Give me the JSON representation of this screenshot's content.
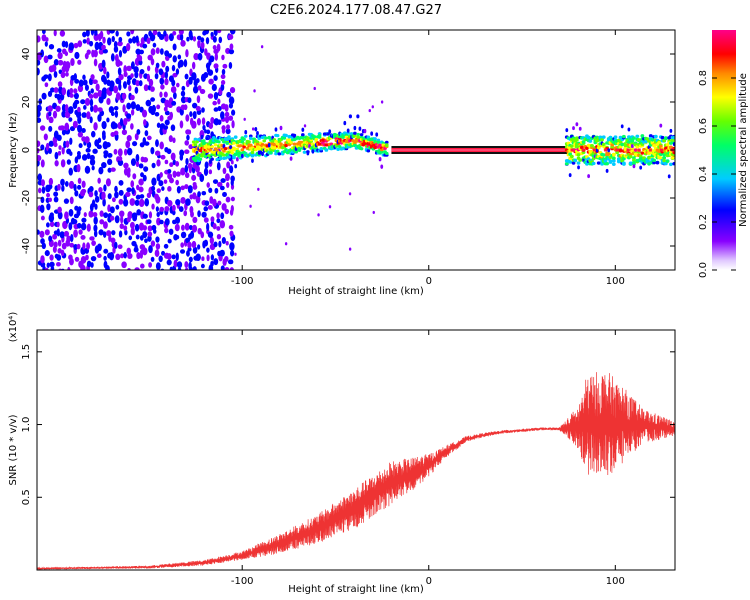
{
  "title": "C2E6.2024.177.08.47.G27",
  "chart_data": [
    {
      "type": "heatmap",
      "title": "",
      "xlabel": "Height of straight line (km)",
      "ylabel": "Frequency (Hz)",
      "xlim": [
        -210,
        132
      ],
      "ylim": [
        -50,
        50
      ],
      "xticks": [
        -100,
        0,
        100
      ],
      "yticks": [
        -40,
        -20,
        0,
        20,
        40
      ],
      "colorbar": {
        "label": "Normalized spectral amplitude",
        "range": [
          0,
          1
        ],
        "ticks": [
          "0.0",
          "0.2",
          "0.4",
          "0.6",
          "0.8"
        ],
        "colormap": "hsv-rainbow (violet-blue-cyan-green-yellow-red-magenta)"
      },
      "features": [
        {
          "x_range": [
            -210,
            -105
          ],
          "description": "broadband noise, amplitude ~0.0-0.2, spanning -50 to 50 Hz"
        },
        {
          "x_range": [
            -125,
            -30
          ],
          "description": "signal band near 0 Hz drifting slightly upward to ~+4 Hz, amplitude ~0.3-0.9"
        },
        {
          "x_range": [
            -20,
            75
          ],
          "description": "constant line at 0 Hz, amplitude 1.0"
        },
        {
          "x_range": [
            75,
            132
          ],
          "description": "scattered band around 0 Hz, width ~±5 Hz, amplitude ~0.3-1.0"
        }
      ],
      "grid": false,
      "legend": "none"
    },
    {
      "type": "line",
      "title": "",
      "xlabel": "Height of straight line (km)",
      "ylabel": "SNR (10 * v/v)",
      "y_multiplier": "(x10⁴)",
      "xlim": [
        -210,
        132
      ],
      "ylim": [
        0,
        1.65
      ],
      "xticks": [
        -100,
        0,
        100
      ],
      "yticks": [
        "0.5",
        "1.0",
        "1.5"
      ],
      "series": [
        {
          "color": "#ee3333",
          "x": [
            -210,
            -150,
            -120,
            -100,
            -80,
            -60,
            -40,
            -20,
            -10,
            0,
            10,
            20,
            30,
            40,
            60,
            70,
            80,
            85,
            95,
            105,
            115,
            125,
            132
          ],
          "y": [
            0.01,
            0.02,
            0.05,
            0.1,
            0.18,
            0.28,
            0.42,
            0.6,
            0.65,
            0.72,
            0.82,
            0.9,
            0.93,
            0.95,
            0.97,
            0.97,
            0.98,
            1.0,
            1.0,
            1.0,
            0.99,
            0.98,
            0.97
          ],
          "noise_amplitude": [
            0.005,
            0.01,
            0.02,
            0.03,
            0.07,
            0.1,
            0.14,
            0.15,
            0.12,
            0.08,
            0.04,
            0.02,
            0.015,
            0.012,
            0.01,
            0.01,
            0.15,
            0.35,
            0.38,
            0.25,
            0.12,
            0.08,
            0.05
          ]
        }
      ],
      "grid": false,
      "legend": "none"
    }
  ]
}
